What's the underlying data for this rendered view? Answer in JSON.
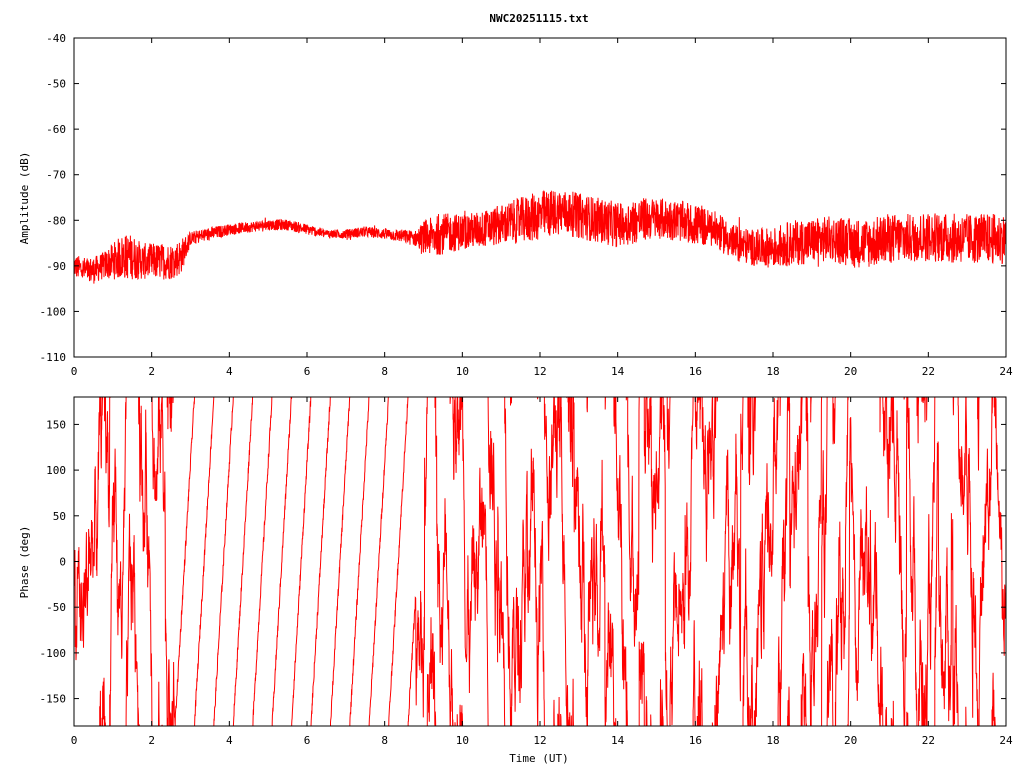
{
  "title": "NWC20251115.txt",
  "chart_data": [
    {
      "type": "line",
      "ylabel": "Amplitude (dB)",
      "xlabel": "",
      "xlim": [
        0,
        24
      ],
      "ylim": [
        -110,
        -40
      ],
      "xticks": [
        "0",
        "2",
        "4",
        "6",
        "8",
        "10",
        "12",
        "14",
        "16",
        "18",
        "20",
        "22",
        "24"
      ],
      "yticks": [
        "-40",
        "-50",
        "-60",
        "-70",
        "-80",
        "-90",
        "-100",
        "-110"
      ],
      "grid": false,
      "color": "#ff0000",
      "series": [
        {
          "x": [
            0,
            0.25,
            0.5,
            0.75,
            1,
            1.25,
            1.5,
            1.75,
            2,
            2.25,
            2.5,
            2.75,
            3,
            3.5,
            4,
            4.5,
            5,
            5.5,
            6,
            6.5,
            7,
            7.5,
            8,
            8.5,
            8.8,
            9,
            9.5,
            10,
            10.5,
            11,
            11.5,
            12,
            12.5,
            13,
            13.5,
            14,
            14.5,
            15,
            15.5,
            16,
            16.5,
            17,
            17.5,
            18,
            18.5,
            19,
            19.5,
            20,
            20.5,
            21,
            21.5,
            22,
            22.5,
            23,
            23.5,
            24
          ],
          "center": [
            -90,
            -91,
            -91,
            -90,
            -89,
            -88,
            -88,
            -89,
            -89,
            -89,
            -89,
            -88,
            -84,
            -83,
            -82,
            -81.5,
            -81,
            -81,
            -82,
            -83,
            -83,
            -82.5,
            -83,
            -83.5,
            -84,
            -84,
            -83,
            -82.5,
            -82,
            -81,
            -80,
            -79,
            -78,
            -79,
            -80,
            -81,
            -80,
            -79.5,
            -80,
            -81,
            -82,
            -85,
            -86,
            -86,
            -85,
            -84.5,
            -84,
            -85,
            -85,
            -84,
            -84,
            -83.5,
            -84,
            -84,
            -84,
            -84
          ],
          "spread": [
            2.5,
            3,
            3,
            3,
            4,
            5,
            5,
            4,
            4,
            4,
            4,
            4,
            1.5,
            1.5,
            1.2,
            1.2,
            1.2,
            1.2,
            1.2,
            1,
            1,
            1.2,
            1.2,
            1.5,
            1.8,
            4,
            4.5,
            4,
            4,
            4.5,
            5,
            5.5,
            5,
            5,
            5,
            5,
            5,
            4.5,
            4.5,
            4.5,
            4,
            4,
            4,
            4.5,
            5,
            5,
            5,
            5.5,
            5.5,
            5.5,
            5.5,
            5.5,
            5.5,
            5.5,
            5.5,
            5.5
          ]
        }
      ]
    },
    {
      "type": "line",
      "ylabel": "Phase (deg)",
      "xlabel": "Time (UT)",
      "xlim": [
        0,
        24
      ],
      "ylim": [
        -180,
        180
      ],
      "xticks": [
        "0",
        "2",
        "4",
        "6",
        "8",
        "10",
        "12",
        "14",
        "16",
        "18",
        "20",
        "22",
        "24"
      ],
      "yticks": [
        "150",
        "100",
        "50",
        "0",
        "-50",
        "-100",
        "-150"
      ],
      "grid": false,
      "color": "#ff0000",
      "series": [
        {
          "sawtooth_start": 2.6,
          "sawtooth_end": 8.8,
          "sawtooth_period_h": 0.5,
          "noise_amplitude_deg": 120
        }
      ]
    }
  ]
}
